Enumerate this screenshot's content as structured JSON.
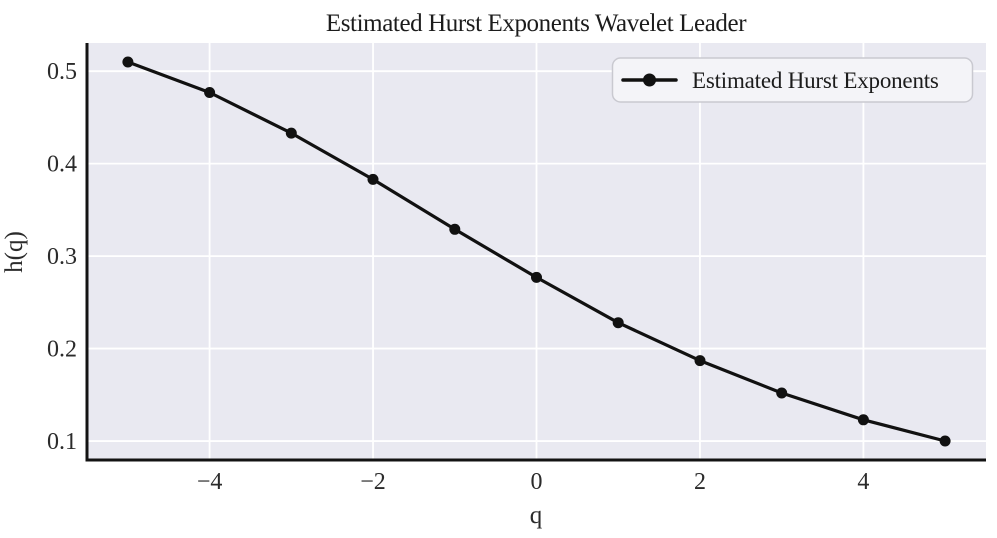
{
  "chart_data": {
    "type": "line",
    "title": "Estimated Hurst Exponents Wavelet Leader",
    "xlabel": "q",
    "ylabel": "h(q)",
    "x": [
      -5,
      -4,
      -3,
      -2,
      -1,
      0,
      1,
      2,
      3,
      4,
      5
    ],
    "series": [
      {
        "name": "Estimated Hurst Exponents",
        "values": [
          0.51,
          0.477,
          0.433,
          0.383,
          0.329,
          0.277,
          0.228,
          0.187,
          0.152,
          0.123,
          0.1
        ]
      }
    ],
    "xlim": [
      -5.5,
      5.5
    ],
    "ylim": [
      0.0795,
      0.5305
    ],
    "xticks": [
      -4,
      -2,
      0,
      2,
      4
    ],
    "xtick_labels": [
      "−4",
      "−2",
      "0",
      "2",
      "4"
    ],
    "yticks": [
      0.1,
      0.2,
      0.3,
      0.4,
      0.5
    ],
    "ytick_labels": [
      "0.1",
      "0.2",
      "0.3",
      "0.4",
      "0.5"
    ],
    "grid": true,
    "legend": {
      "position": "upper right",
      "entries": [
        "Estimated Hurst Exponents"
      ]
    },
    "colors": {
      "figure_bg": "#ffffff",
      "plot_bg": "#e9e9f1",
      "grid": "#ffffff",
      "line": "#111111",
      "marker": "#111111",
      "spine": "#131313",
      "text": "#2b2b2b",
      "legend_bg": "#f4f4f8",
      "legend_border": "#c9c9d0"
    }
  }
}
